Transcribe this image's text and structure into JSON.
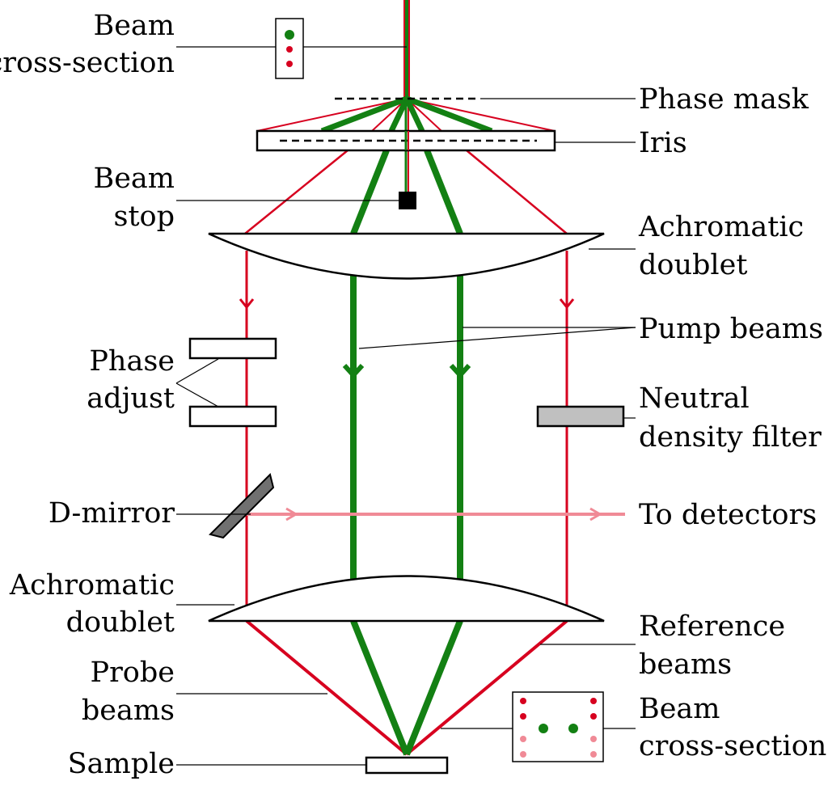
{
  "labels": {
    "beam_cross_section_top": [
      "Beam",
      "cross-section"
    ],
    "phase_mask": "Phase mask",
    "iris": "Iris",
    "beam_stop": [
      "Beam",
      "stop"
    ],
    "achromatic_doublet_top": [
      "Achromatic",
      "doublet"
    ],
    "pump_beams": "Pump beams",
    "phase_adjust": [
      "Phase",
      "adjust"
    ],
    "neutral_density_filter": [
      "Neutral",
      "density filter"
    ],
    "d_mirror": "D-mirror",
    "to_detectors": "To detectors",
    "achromatic_doublet_bottom": [
      "Achromatic",
      "doublet"
    ],
    "reference_beams": [
      "Reference",
      "beams"
    ],
    "probe_beams": [
      "Probe",
      "beams"
    ],
    "beam_cross_section_bottom": [
      "Beam",
      "cross-section"
    ],
    "sample": "Sample"
  },
  "colors": {
    "probe_red": "#d7001f",
    "pump_green": "#138013",
    "reference_pink": "#f08a96",
    "filter_gray": "#c0c0c0",
    "mirror_gray": "#707070",
    "black": "#000000"
  }
}
